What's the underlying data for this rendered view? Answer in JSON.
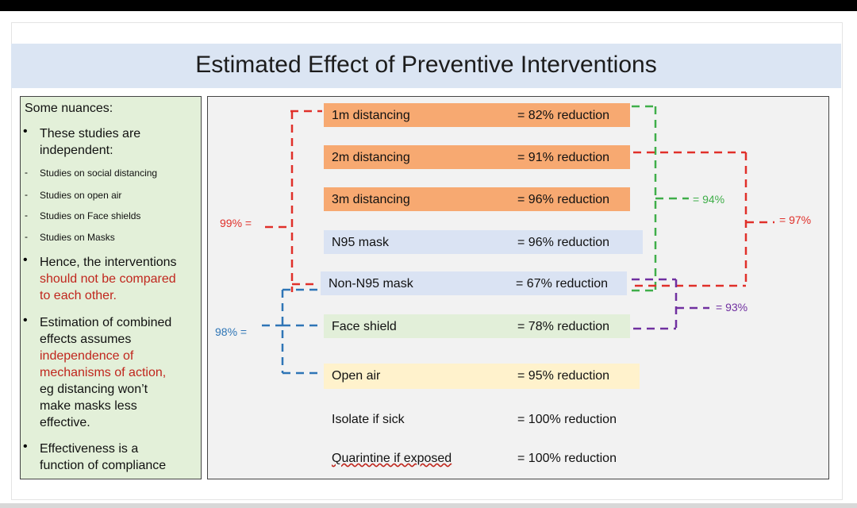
{
  "title": "Estimated Effect of Preventive Interventions",
  "nuances": {
    "heading": "Some nuances:",
    "b1_l1": "These studies are",
    "b1_l2": "independent:",
    "sub1": "Studies on social distancing",
    "sub2": "Studies on open air",
    "sub3": "Studies on Face shields",
    "sub4": "Studies on Masks",
    "b2_l1": "Hence, the interventions",
    "b2_l2": "should not be compared",
    "b2_l3": "to each other.",
    "b3_l1": "Estimation of combined",
    "b3_l2": "effects assumes",
    "b3_l3": "independence of",
    "b3_l4": "mechanisms of action,",
    "b3_l5": "eg distancing won’t",
    "b3_l6": "make masks less",
    "b3_l7": "effective.",
    "b4_l1": "Effectiveness is a",
    "b4_l2": "function of compliance"
  },
  "interventions": [
    {
      "name": "1m distancing",
      "effect": "= 82% reduction",
      "bg": "#f7a971"
    },
    {
      "name": "2m distancing",
      "effect": "= 91% reduction",
      "bg": "#f7a971"
    },
    {
      "name": "3m distancing",
      "effect": "= 96% reduction",
      "bg": "#f7a971"
    },
    {
      "name": "N95 mask",
      "effect": "= 96% reduction",
      "bg": "#dae3f3"
    },
    {
      "name": "Non-N95 mask",
      "effect": "= 67% reduction",
      "bg": "#dae3f3"
    },
    {
      "name": "Face shield",
      "effect": "= 78% reduction",
      "bg": "#e2efd9"
    },
    {
      "name": "Open air",
      "effect": "= 95% reduction",
      "bg": "#fff2cc"
    },
    {
      "name": "Isolate if sick",
      "effect": "= 100% reduction",
      "bg": ""
    },
    {
      "name": "Quarintine if exposed",
      "effect": "= 100% reduction",
      "bg": ""
    }
  ],
  "combined": {
    "c99": "99% =",
    "c98": "98% =",
    "c94": "= 94%",
    "c97": "= 97%",
    "c93": "= 93%"
  },
  "colors": {
    "red": "#e0302a",
    "green": "#3fae49",
    "blue": "#2e75b6",
    "purple": "#7030a0"
  }
}
